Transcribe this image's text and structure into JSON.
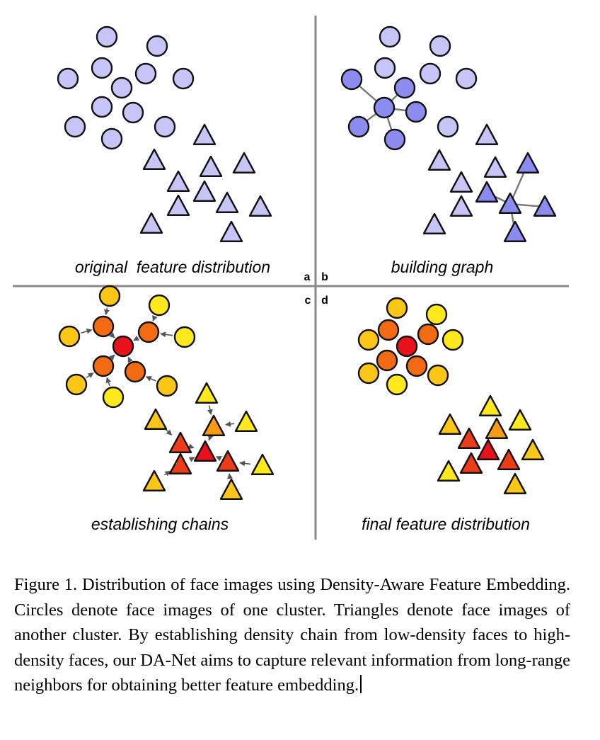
{
  "colors": {
    "light_purple": "#c7c5f8",
    "mid_purple": "#8c8cf0",
    "red": "#e8121d",
    "red_orange": "#ee3c18",
    "orange": "#f26b12",
    "amber": "#f79a14",
    "gold": "#fbc615",
    "yellow": "#ffe81c",
    "edge_gray": "#777777",
    "divider": "#888888"
  },
  "panel_letters": [
    "a",
    "b",
    "c",
    "d"
  ],
  "panels": [
    {
      "id": "a",
      "title": "original  feature distribution"
    },
    {
      "id": "b",
      "title": "building graph"
    },
    {
      "id": "c",
      "title": "establishing chains"
    },
    {
      "id": "d",
      "title": "final feature distribution"
    }
  ],
  "caption": {
    "text": "Figure 1. Distribution of face images using Density-Aware Feature Embedding. Circles denote face images of one cluster. Triangles denote face images of another cluster. By establishing density chain from low-density faces to high-density faces, our DA-Net aims to capture relevant information from long-range neighbors for obtaining better feature embedding."
  }
}
